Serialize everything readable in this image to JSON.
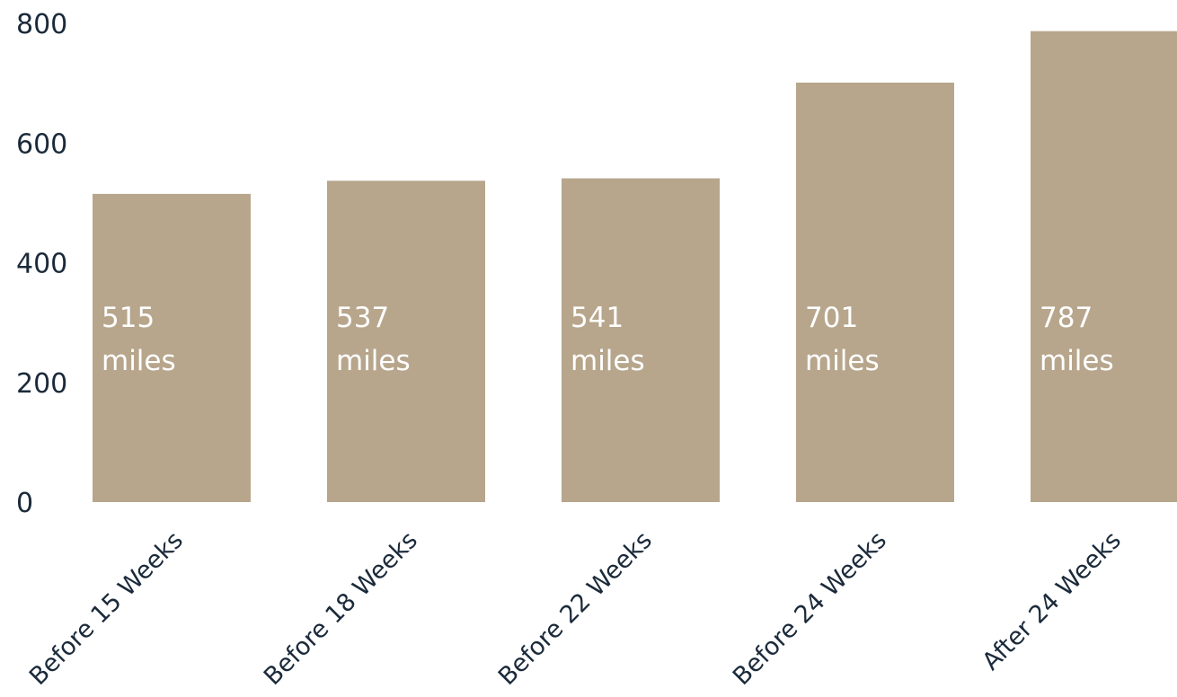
{
  "chart_data": {
    "type": "bar",
    "categories": [
      "Before 15 Weeks",
      "Before 18 Weeks",
      "Before 22 Weeks",
      "Before 24 Weeks",
      "After 24 Weeks"
    ],
    "values": [
      515,
      537,
      541,
      701,
      787
    ],
    "data_labels": [
      [
        "515",
        "miles"
      ],
      [
        "537",
        "miles"
      ],
      [
        "541",
        "miles"
      ],
      [
        "701",
        "miles"
      ],
      [
        "787",
        "miles"
      ]
    ],
    "yticks": [
      "0",
      "200",
      "400",
      "600",
      "800"
    ],
    "ylim": [
      0,
      800
    ],
    "grid": false,
    "legend": "none",
    "colors": {
      "bar": "#b7a68c",
      "axis_text": "#1b2a3a",
      "label_text": "#ffffff"
    }
  }
}
